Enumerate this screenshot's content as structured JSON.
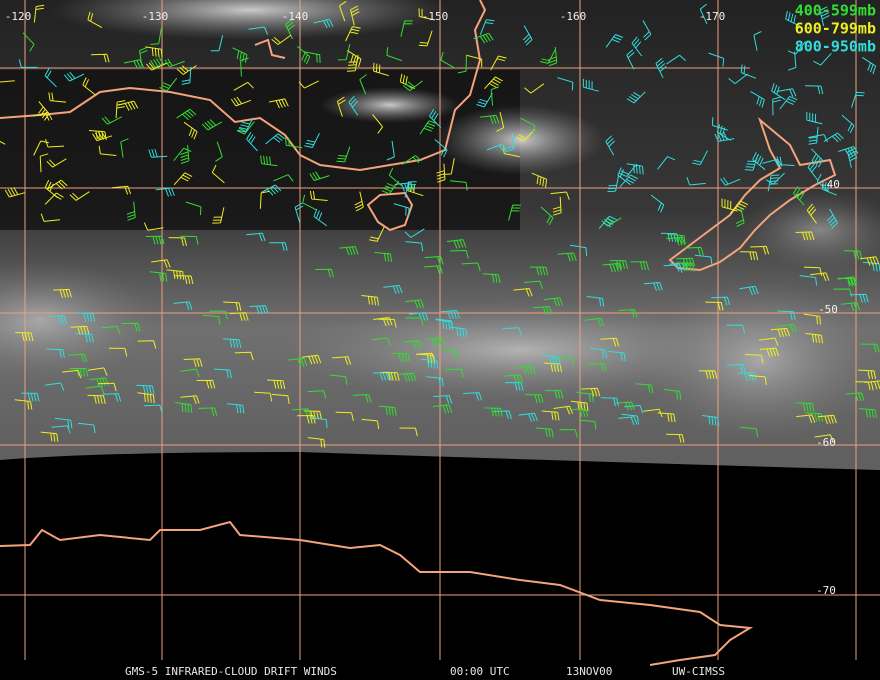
{
  "grid": {
    "longitudes": [
      "-120",
      "-130",
      "-140",
      "-150",
      "-160",
      "-170"
    ],
    "latitudes": [
      "-40",
      "-50",
      "-60",
      "-70"
    ]
  },
  "legend": [
    {
      "label": "400-599mb",
      "color": "#33dd33"
    },
    {
      "label": "600-799mb",
      "color": "#eeee22"
    },
    {
      "label": "800-950mb",
      "color": "#33dddd"
    }
  ],
  "footer": [
    "GMS-5 INFRARED-CLOUD DRIFT WINDS",
    "00:00 UTC",
    "13NOV00",
    "UW-CIMSS"
  ]
}
